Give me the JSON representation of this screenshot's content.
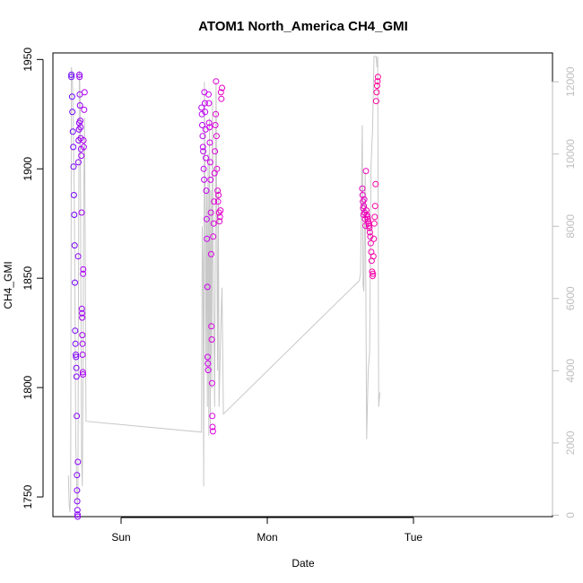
{
  "chart_data": {
    "type": "scatter",
    "title": "ATOM1 North_America CH4_GMI",
    "xlabel": "Date",
    "ylabel": "CH4_GMI",
    "xlim": [
      -0.17,
      2.84
    ],
    "ylim": [
      1741,
      1953
    ],
    "y2lim": [
      -40,
      12800
    ],
    "grid": false,
    "legend": "none",
    "x_ticks": [
      {
        "x": 0,
        "label": "Sun"
      },
      {
        "x": 1,
        "label": "Mon"
      },
      {
        "x": 2,
        "label": "Tue"
      }
    ],
    "y_ticks": [
      1750,
      1800,
      1850,
      1900,
      1950
    ],
    "y2_ticks": [
      0,
      2000,
      4000,
      6000,
      8000,
      10000,
      12000
    ],
    "colors": {
      "axis": "#000000",
      "secondary_axis": "#bebebe",
      "altitude_line": "#c8c8c8",
      "gradient_start": "#6a00ff",
      "gradient_mid": "#d000ee",
      "gradient_end": "#ff0099"
    },
    "series": [
      {
        "values": [
          {
            "x": -0.34,
            "y": 1943
          },
          {
            "x": -0.34,
            "y": 1942
          },
          {
            "x": -0.335,
            "y": 1933
          },
          {
            "x": -0.333,
            "y": 1926
          },
          {
            "x": -0.33,
            "y": 1917
          },
          {
            "x": -0.327,
            "y": 1910
          },
          {
            "x": -0.325,
            "y": 1901
          },
          {
            "x": -0.323,
            "y": 1888
          },
          {
            "x": -0.32,
            "y": 1879
          },
          {
            "x": -0.318,
            "y": 1865
          },
          {
            "x": -0.316,
            "y": 1848
          },
          {
            "x": -0.314,
            "y": 1826
          },
          {
            "x": -0.312,
            "y": 1820
          },
          {
            "x": -0.31,
            "y": 1815
          },
          {
            "x": -0.308,
            "y": 1814
          },
          {
            "x": -0.306,
            "y": 1809
          },
          {
            "x": -0.305,
            "y": 1805
          },
          {
            "x": -0.303,
            "y": 1787
          },
          {
            "x": -0.302,
            "y": 1760
          },
          {
            "x": -0.301,
            "y": 1753
          },
          {
            "x": -0.3,
            "y": 1748
          },
          {
            "x": -0.299,
            "y": 1744
          },
          {
            "x": -0.298,
            "y": 1742
          },
          {
            "x": -0.297,
            "y": 1741
          },
          {
            "x": -0.296,
            "y": 1766
          },
          {
            "x": -0.294,
            "y": 1860
          },
          {
            "x": -0.292,
            "y": 1903
          },
          {
            "x": -0.29,
            "y": 1913
          },
          {
            "x": -0.288,
            "y": 1918
          },
          {
            "x": -0.286,
            "y": 1921
          },
          {
            "x": -0.285,
            "y": 1943
          },
          {
            "x": -0.284,
            "y": 1942
          },
          {
            "x": -0.283,
            "y": 1934
          },
          {
            "x": -0.281,
            "y": 1929
          },
          {
            "x": -0.279,
            "y": 1922
          },
          {
            "x": -0.277,
            "y": 1919
          },
          {
            "x": -0.276,
            "y": 1914
          },
          {
            "x": -0.274,
            "y": 1909
          },
          {
            "x": -0.272,
            "y": 1906
          },
          {
            "x": -0.27,
            "y": 1880
          },
          {
            "x": -0.268,
            "y": 1836
          },
          {
            "x": -0.267,
            "y": 1834
          },
          {
            "x": -0.266,
            "y": 1832
          },
          {
            "x": -0.265,
            "y": 1824
          },
          {
            "x": -0.264,
            "y": 1820
          },
          {
            "x": -0.263,
            "y": 1815
          },
          {
            "x": -0.262,
            "y": 1807
          },
          {
            "x": -0.261,
            "y": 1806
          },
          {
            "x": -0.26,
            "y": 1852
          },
          {
            "x": -0.259,
            "y": 1854
          },
          {
            "x": -0.257,
            "y": 1913
          },
          {
            "x": -0.255,
            "y": 1910
          },
          {
            "x": -0.253,
            "y": 1927
          },
          {
            "x": -0.25,
            "y": 1935
          },
          {
            "x": 0.55,
            "y": 1928
          },
          {
            "x": 0.553,
            "y": 1925
          },
          {
            "x": 0.555,
            "y": 1920
          },
          {
            "x": 0.558,
            "y": 1915
          },
          {
            "x": 0.56,
            "y": 1910
          },
          {
            "x": 0.562,
            "y": 1908
          },
          {
            "x": 0.565,
            "y": 1900
          },
          {
            "x": 0.568,
            "y": 1895
          },
          {
            "x": 0.57,
            "y": 1935
          },
          {
            "x": 0.573,
            "y": 1930
          },
          {
            "x": 0.575,
            "y": 1926
          },
          {
            "x": 0.578,
            "y": 1918
          },
          {
            "x": 0.58,
            "y": 1905
          },
          {
            "x": 0.583,
            "y": 1890
          },
          {
            "x": 0.585,
            "y": 1877
          },
          {
            "x": 0.587,
            "y": 1868
          },
          {
            "x": 0.59,
            "y": 1846
          },
          {
            "x": 0.592,
            "y": 1814
          },
          {
            "x": 0.594,
            "y": 1811
          },
          {
            "x": 0.596,
            "y": 1808
          },
          {
            "x": 0.598,
            "y": 1934
          },
          {
            "x": 0.6,
            "y": 1930
          },
          {
            "x": 0.602,
            "y": 1921
          },
          {
            "x": 0.605,
            "y": 1919
          },
          {
            "x": 0.607,
            "y": 1912
          },
          {
            "x": 0.61,
            "y": 1903
          },
          {
            "x": 0.612,
            "y": 1895
          },
          {
            "x": 0.614,
            "y": 1880
          },
          {
            "x": 0.616,
            "y": 1861
          },
          {
            "x": 0.618,
            "y": 1828
          },
          {
            "x": 0.62,
            "y": 1822
          },
          {
            "x": 0.622,
            "y": 1802
          },
          {
            "x": 0.624,
            "y": 1787
          },
          {
            "x": 0.626,
            "y": 1782
          },
          {
            "x": 0.628,
            "y": 1780
          },
          {
            "x": 0.63,
            "y": 1869
          },
          {
            "x": 0.633,
            "y": 1875
          },
          {
            "x": 0.636,
            "y": 1885
          },
          {
            "x": 0.639,
            "y": 1898
          },
          {
            "x": 0.642,
            "y": 1908
          },
          {
            "x": 0.645,
            "y": 1920
          },
          {
            "x": 0.648,
            "y": 1925
          },
          {
            "x": 0.65,
            "y": 1940
          },
          {
            "x": 0.653,
            "y": 1915
          },
          {
            "x": 0.656,
            "y": 1900
          },
          {
            "x": 0.66,
            "y": 1890
          },
          {
            "x": 0.663,
            "y": 1885
          },
          {
            "x": 0.666,
            "y": 1888
          },
          {
            "x": 0.67,
            "y": 1880
          },
          {
            "x": 0.673,
            "y": 1876
          },
          {
            "x": 0.676,
            "y": 1878
          },
          {
            "x": 0.68,
            "y": 1881
          },
          {
            "x": 0.683,
            "y": 1935
          },
          {
            "x": 0.686,
            "y": 1932
          },
          {
            "x": 0.69,
            "y": 1937
          },
          {
            "x": 1.65,
            "y": 1891
          },
          {
            "x": 1.652,
            "y": 1888
          },
          {
            "x": 1.654,
            "y": 1885
          },
          {
            "x": 1.656,
            "y": 1882
          },
          {
            "x": 1.658,
            "y": 1879
          },
          {
            "x": 1.66,
            "y": 1883
          },
          {
            "x": 1.663,
            "y": 1886
          },
          {
            "x": 1.666,
            "y": 1880
          },
          {
            "x": 1.669,
            "y": 1877
          },
          {
            "x": 1.672,
            "y": 1874
          },
          {
            "x": 1.675,
            "y": 1899
          },
          {
            "x": 1.678,
            "y": 1881
          },
          {
            "x": 1.681,
            "y": 1879
          },
          {
            "x": 1.684,
            "y": 1878
          },
          {
            "x": 1.687,
            "y": 1877
          },
          {
            "x": 1.69,
            "y": 1876
          },
          {
            "x": 1.693,
            "y": 1875
          },
          {
            "x": 1.696,
            "y": 1874
          },
          {
            "x": 1.699,
            "y": 1873
          },
          {
            "x": 1.702,
            "y": 1871
          },
          {
            "x": 1.705,
            "y": 1869
          },
          {
            "x": 1.708,
            "y": 1866
          },
          {
            "x": 1.711,
            "y": 1862
          },
          {
            "x": 1.714,
            "y": 1858
          },
          {
            "x": 1.717,
            "y": 1853
          },
          {
            "x": 1.72,
            "y": 1851
          },
          {
            "x": 1.723,
            "y": 1852
          },
          {
            "x": 1.726,
            "y": 1860
          },
          {
            "x": 1.729,
            "y": 1868
          },
          {
            "x": 1.732,
            "y": 1875
          },
          {
            "x": 1.735,
            "y": 1878
          },
          {
            "x": 1.738,
            "y": 1883
          },
          {
            "x": 1.741,
            "y": 1893
          },
          {
            "x": 1.745,
            "y": 1931
          },
          {
            "x": 1.748,
            "y": 1935
          },
          {
            "x": 1.751,
            "y": 1938
          },
          {
            "x": 1.754,
            "y": 1940
          },
          {
            "x": 1.757,
            "y": 1942
          }
        ]
      }
    ],
    "altitude_line": [
      [
        -0.36,
        1100
      ],
      [
        -0.355,
        300
      ],
      [
        -0.35,
        80
      ],
      [
        -0.345,
        700
      ],
      [
        -0.34,
        12400
      ],
      [
        -0.333,
        12200
      ],
      [
        -0.32,
        9000
      ],
      [
        -0.31,
        2000
      ],
      [
        -0.3,
        200
      ],
      [
        -0.295,
        500
      ],
      [
        -0.29,
        8000
      ],
      [
        -0.285,
        12300
      ],
      [
        -0.28,
        11500
      ],
      [
        -0.275,
        6000
      ],
      [
        -0.27,
        1500
      ],
      [
        -0.265,
        800
      ],
      [
        -0.26,
        4000
      ],
      [
        -0.255,
        9000
      ],
      [
        -0.25,
        11000
      ],
      [
        -0.24,
        2600
      ],
      [
        0.55,
        2300
      ],
      [
        0.555,
        8000
      ],
      [
        0.56,
        7000
      ],
      [
        0.565,
        800
      ],
      [
        0.57,
        12000
      ],
      [
        0.575,
        9000
      ],
      [
        0.58,
        4000
      ],
      [
        0.585,
        9000
      ],
      [
        0.59,
        3000
      ],
      [
        0.595,
        10000
      ],
      [
        0.6,
        2200
      ],
      [
        0.605,
        11000
      ],
      [
        0.61,
        2500
      ],
      [
        0.615,
        9000
      ],
      [
        0.62,
        3500
      ],
      [
        0.625,
        11500
      ],
      [
        0.63,
        7000
      ],
      [
        0.64,
        3000
      ],
      [
        0.65,
        12000
      ],
      [
        0.66,
        4000
      ],
      [
        0.665,
        9000
      ],
      [
        0.67,
        3000
      ],
      [
        0.68,
        4800
      ],
      [
        0.69,
        6300
      ],
      [
        0.7,
        2800
      ],
      [
        1.63,
        6500
      ],
      [
        1.638,
        6700
      ],
      [
        1.65,
        10800
      ],
      [
        1.655,
        6400
      ],
      [
        1.66,
        6200
      ],
      [
        1.67,
        9500
      ],
      [
        1.68,
        2100
      ],
      [
        1.69,
        4000
      ],
      [
        1.7,
        4500
      ],
      [
        1.71,
        9700
      ],
      [
        1.72,
        10700
      ],
      [
        1.73,
        12700
      ],
      [
        1.745,
        12700
      ],
      [
        1.75,
        12400
      ],
      [
        1.755,
        12700
      ],
      [
        1.762,
        3000
      ],
      [
        1.77,
        3400
      ]
    ]
  }
}
